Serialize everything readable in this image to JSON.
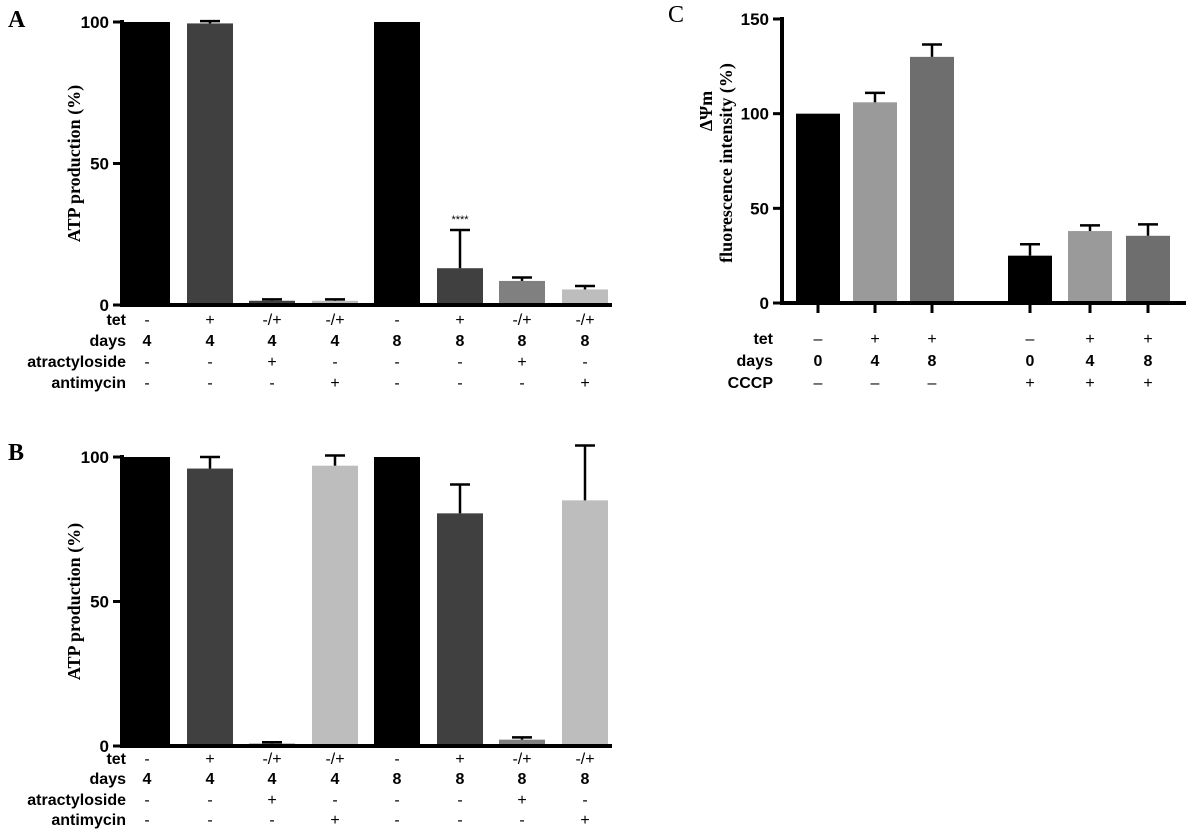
{
  "chart_data": [
    {
      "panel": "A",
      "type": "bar",
      "ylabel": "ATP production (%)",
      "ylim": [
        0,
        100
      ],
      "yticks": [
        "0",
        "50",
        "100"
      ],
      "values": [
        100,
        99.5,
        1.5,
        1.5,
        100,
        13,
        8.5,
        5.5
      ],
      "errors": [
        0,
        0.8,
        0.5,
        0.5,
        0,
        13.5,
        1.2,
        1.2
      ],
      "colors": [
        "#000000",
        "#404040",
        "#404040",
        "#bdbdbd",
        "#000000",
        "#404040",
        "#808080",
        "#bdbdbd"
      ],
      "annotations": [
        {
          "index": 5,
          "text": "****"
        }
      ],
      "rows": [
        {
          "label": "tet",
          "values": [
            "-",
            "+",
            "-/+",
            "-/+",
            "-",
            "+",
            "-/+",
            "-/+"
          ]
        },
        {
          "label": "days",
          "values": [
            "4",
            "4",
            "4",
            "4",
            "8",
            "8",
            "8",
            "8"
          ]
        },
        {
          "label": "atractyloside",
          "values": [
            "-",
            "-",
            "+",
            "-",
            "-",
            "-",
            "+",
            "-"
          ]
        },
        {
          "label": "antimycin",
          "values": [
            "-",
            "-",
            "-",
            "+",
            "-",
            "-",
            "-",
            "+"
          ]
        }
      ]
    },
    {
      "panel": "B",
      "type": "bar",
      "ylabel": "ATP production (%)",
      "ylim": [
        0,
        100
      ],
      "yticks": [
        "0",
        "50",
        "100"
      ],
      "values": [
        100,
        96,
        0.8,
        97,
        100,
        80.5,
        2.2,
        85
      ],
      "errors": [
        0,
        4,
        0.5,
        3.5,
        0,
        10,
        0.8,
        19
      ],
      "colors": [
        "#000000",
        "#404040",
        "#404040",
        "#bdbdbd",
        "#000000",
        "#404040",
        "#808080",
        "#bdbdbd"
      ],
      "annotations": [],
      "rows": [
        {
          "label": "tet",
          "values": [
            "-",
            "+",
            "-/+",
            "-/+",
            "-",
            "+",
            "-/+",
            "-/+"
          ]
        },
        {
          "label": "days",
          "values": [
            "4",
            "4",
            "4",
            "4",
            "8",
            "8",
            "8",
            "8"
          ]
        },
        {
          "label": "atractyloside",
          "values": [
            "-",
            "-",
            "+",
            "-",
            "-",
            "-",
            "+",
            "-"
          ]
        },
        {
          "label": "antimycin",
          "values": [
            "-",
            "-",
            "-",
            "+",
            "-",
            "-",
            "-",
            "+"
          ]
        }
      ]
    },
    {
      "panel": "C",
      "type": "bar",
      "ylabel_line1": "ΔΨm",
      "ylabel_line2": "fluorescence intensity  (%)",
      "ylim": [
        0,
        150
      ],
      "yticks": [
        "0",
        "50",
        "100",
        "150"
      ],
      "values": [
        100,
        106,
        130,
        25,
        38,
        35.5
      ],
      "errors": [
        0,
        5,
        6.5,
        6,
        3,
        6
      ],
      "colors": [
        "#000000",
        "#9a9a9a",
        "#6e6e6e",
        "#000000",
        "#9a9a9a",
        "#6e6e6e"
      ],
      "annotations": [],
      "rows": [
        {
          "label": "tet",
          "values": [
            "–",
            "+",
            "+",
            "–",
            "+",
            "+"
          ]
        },
        {
          "label": "days",
          "values": [
            "0",
            "4",
            "8",
            "0",
            "4",
            "8"
          ]
        },
        {
          "label": "CCCP",
          "values": [
            "–",
            "–",
            "–",
            "+",
            "+",
            "+"
          ]
        }
      ]
    }
  ]
}
